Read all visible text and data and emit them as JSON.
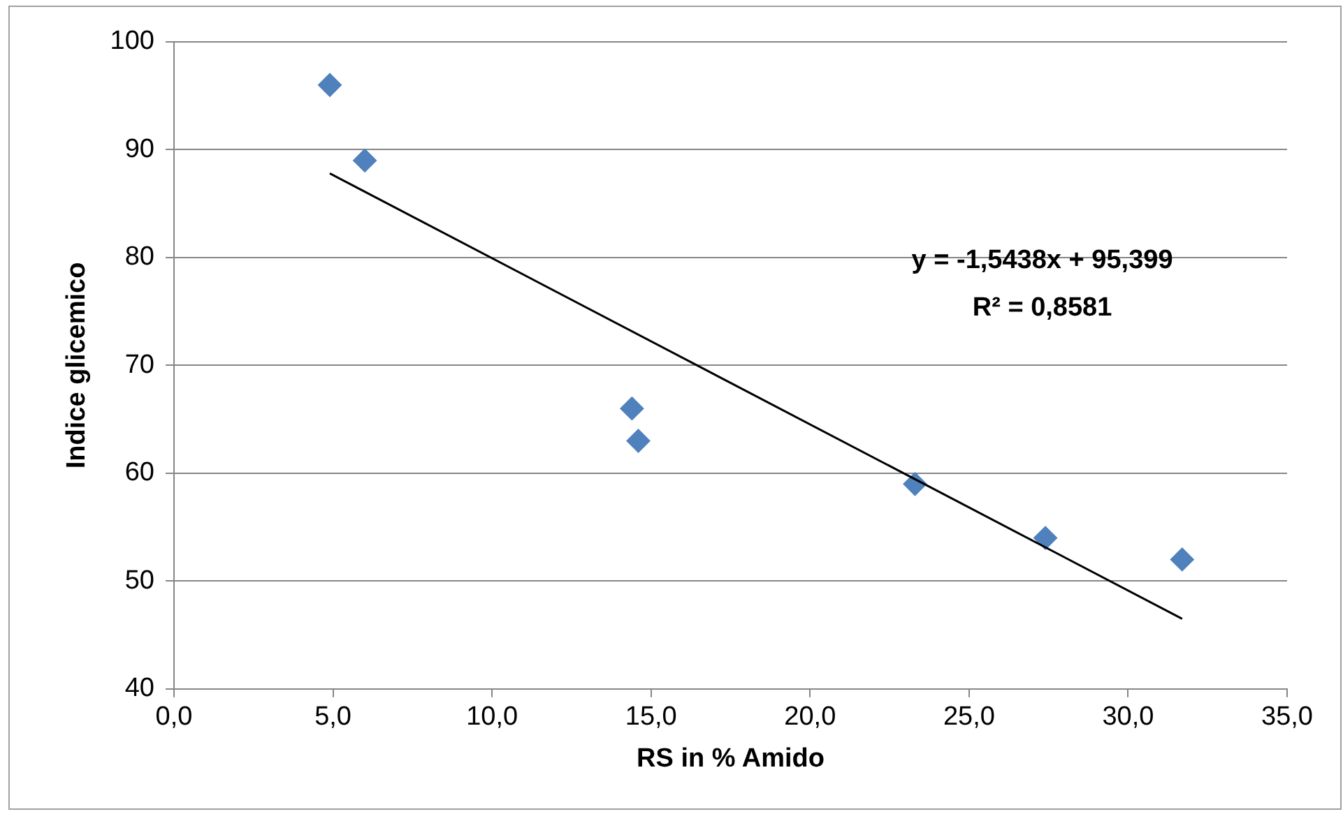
{
  "chart_data": {
    "type": "scatter",
    "xlabel": "RS in % Amido",
    "ylabel": "Indice glicemico",
    "xlim": [
      0,
      35
    ],
    "xticks": [
      {
        "value": 0,
        "label": "0,0"
      },
      {
        "value": 5,
        "label": "5,0"
      },
      {
        "value": 10,
        "label": "10,0"
      },
      {
        "value": 15,
        "label": "15,0"
      },
      {
        "value": 20,
        "label": "20,0"
      },
      {
        "value": 25,
        "label": "25,0"
      },
      {
        "value": 30,
        "label": "30,0"
      },
      {
        "value": 35,
        "label": "35,0"
      }
    ],
    "ylim": [
      40,
      100
    ],
    "yticks": [
      40,
      50,
      60,
      70,
      80,
      90,
      100
    ],
    "grid": "y",
    "marker": "diamond",
    "series": [
      {
        "color": "#4f81bd",
        "x": [
          4.9,
          6.0,
          14.4,
          14.6,
          23.3,
          27.4,
          31.7
        ],
        "values": [
          96,
          89,
          66,
          63,
          59,
          54,
          52
        ]
      },
      {
        "type": "line",
        "marker": "none",
        "color": "#000000",
        "x": [
          4.9,
          31.7
        ],
        "values": [
          87.8,
          46.5
        ]
      }
    ],
    "annotations": [
      "y = -1,5438x + 95,399",
      "R² = 0,8581"
    ]
  }
}
